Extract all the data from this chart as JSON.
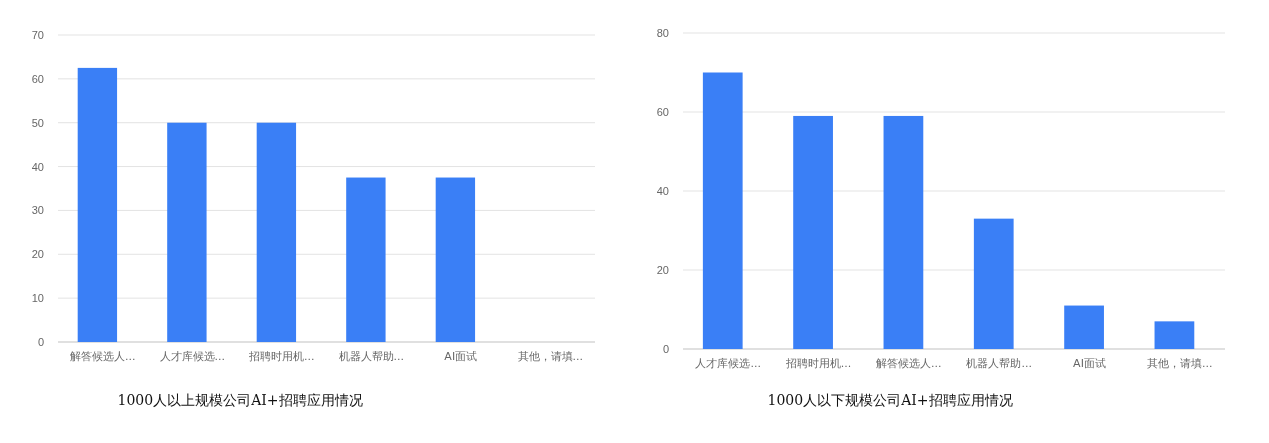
{
  "chart_data": [
    {
      "type": "bar",
      "title": "1000人以上规模公司AI+招聘应用情况",
      "categories": [
        "解答候选人...",
        "人才库候选...",
        "招聘时用机...",
        "机器人帮助...",
        "AI面试",
        "其他，请填..."
      ],
      "values": [
        62.5,
        50,
        50,
        37.5,
        37.5,
        0
      ],
      "color": "#3a7ff6",
      "ylim": [
        0,
        70
      ],
      "yticks": [
        0,
        10,
        20,
        30,
        40,
        50,
        60,
        70
      ],
      "grid": "y"
    },
    {
      "type": "bar",
      "title": "1000人以下规模公司AI+招聘应用情况",
      "categories": [
        "人才库候选...",
        "招聘时用机...",
        "解答候选人...",
        "机器人帮助...",
        "AI面试",
        "其他，请填..."
      ],
      "values": [
        70,
        59,
        59,
        33,
        11,
        7
      ],
      "color": "#3a7ff6",
      "ylim": [
        0,
        80
      ],
      "yticks": [
        0,
        20,
        40,
        60,
        80
      ],
      "grid": "y"
    }
  ]
}
